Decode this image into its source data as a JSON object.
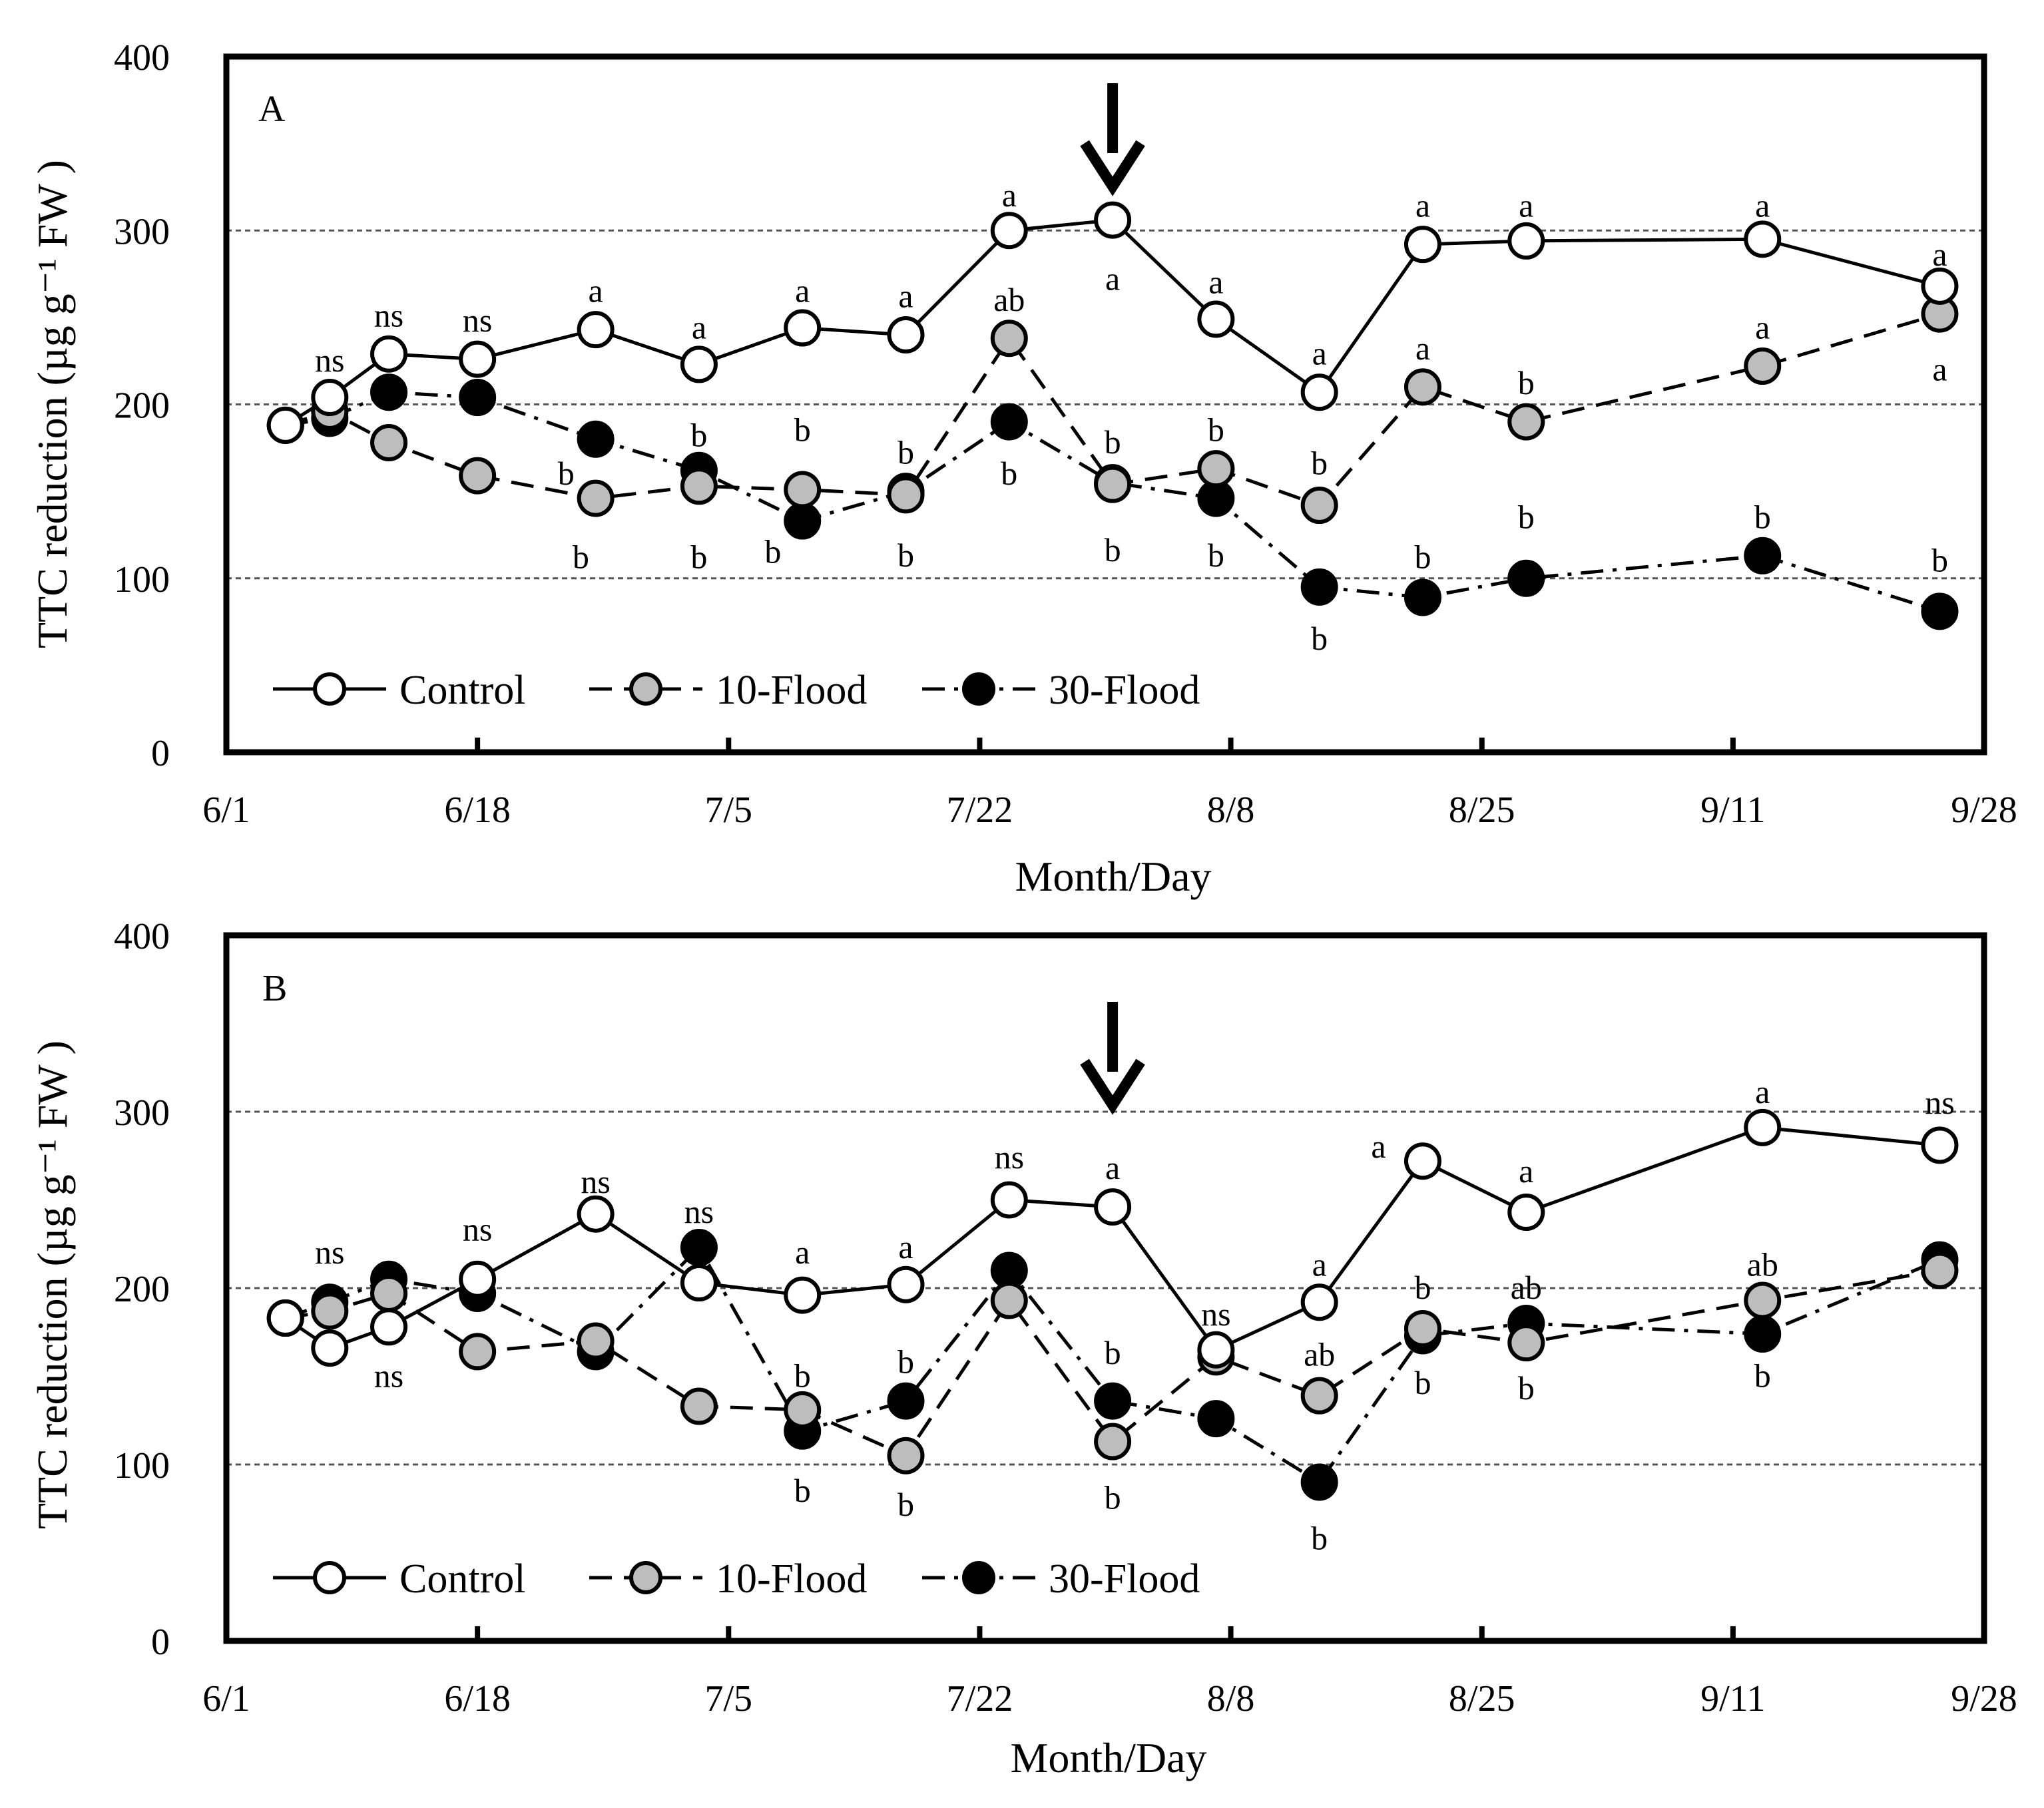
{
  "figure": {
    "ylabel": "TTC reduction  (µg g⁻¹ FW )",
    "xlabel": "Month/Day",
    "x_tick_labels": [
      "6/1",
      "6/18",
      "7/5",
      "7/22",
      "8/8",
      "8/25",
      "9/11",
      "9/28"
    ],
    "y_tick_labels": [
      "0",
      "100",
      "200",
      "300",
      "400"
    ]
  },
  "legend": {
    "control": "Control",
    "flood10": "10-Flood",
    "flood30": "30-Flood"
  },
  "colors": {
    "control_fill": "#ffffff",
    "flood10_fill": "#bdbdbd",
    "flood30_fill": "#000000",
    "line": "#000000",
    "gridline": "#555555"
  },
  "chart_data": [
    {
      "panel": "A",
      "type": "line",
      "xlabel": "Month/Day",
      "ylabel": "TTC reduction  (µg g⁻¹ FW )",
      "xlim_day": [
        0,
        119
      ],
      "x_ticks_day": [
        0,
        17,
        34,
        51,
        68,
        85,
        102,
        119
      ],
      "x_tick_labels": [
        "6/1",
        "6/18",
        "7/5",
        "7/22",
        "8/8",
        "8/25",
        "9/11",
        "9/28"
      ],
      "ylim": [
        0,
        400
      ],
      "y_ticks": [
        0,
        100,
        200,
        300,
        400
      ],
      "gridlines_y": [
        100,
        200,
        300
      ],
      "arrow_day": 60,
      "series": [
        {
          "name": "Control",
          "x": [
            4,
            7,
            11,
            17,
            25,
            32,
            39,
            46,
            53,
            60,
            67,
            74,
            81,
            88,
            104,
            116
          ],
          "y": [
            188,
            204,
            229,
            226,
            243,
            223,
            244,
            240,
            300,
            306,
            249,
            207,
            292,
            294,
            295,
            268
          ]
        },
        {
          "name": "10-Flood",
          "x": [
            4,
            7,
            11,
            17,
            25,
            32,
            39,
            46,
            53,
            60,
            67,
            74,
            81,
            88,
            104,
            116
          ],
          "y": [
            188,
            196,
            178,
            159,
            146,
            153,
            151,
            148,
            238,
            154,
            163,
            142,
            210,
            190,
            222,
            252
          ]
        },
        {
          "name": "30-Flood",
          "x": [
            4,
            7,
            11,
            17,
            25,
            32,
            39,
            46,
            53,
            60,
            67,
            74,
            81,
            88,
            104,
            116
          ],
          "y": [
            188,
            192,
            207,
            204,
            180,
            162,
            133,
            150,
            190,
            155,
            146,
            95,
            89,
            100,
            113,
            81
          ]
        }
      ],
      "annotations": [
        {
          "text": "ns",
          "x": 7,
          "y": 225
        },
        {
          "text": "ns",
          "x": 11,
          "y": 251
        },
        {
          "text": "ns",
          "x": 17,
          "y": 248
        },
        {
          "text": "a",
          "x": 25,
          "y": 265
        },
        {
          "text": "b",
          "x": 23,
          "y": 160
        },
        {
          "text": "b",
          "x": 24,
          "y": 112
        },
        {
          "text": "a",
          "x": 32,
          "y": 244
        },
        {
          "text": "b",
          "x": 32,
          "y": 182
        },
        {
          "text": "b",
          "x": 32,
          "y": 112
        },
        {
          "text": "a",
          "x": 39,
          "y": 265
        },
        {
          "text": "b",
          "x": 39,
          "y": 185
        },
        {
          "text": "b",
          "x": 37,
          "y": 115
        },
        {
          "text": "a",
          "x": 46,
          "y": 262
        },
        {
          "text": "b",
          "x": 46,
          "y": 172
        },
        {
          "text": "b",
          "x": 46,
          "y": 113
        },
        {
          "text": "a",
          "x": 53,
          "y": 320
        },
        {
          "text": "ab",
          "x": 53,
          "y": 260
        },
        {
          "text": "b",
          "x": 53,
          "y": 160
        },
        {
          "text": "a",
          "x": 60,
          "y": 272
        },
        {
          "text": "b",
          "x": 60,
          "y": 178
        },
        {
          "text": "b",
          "x": 60,
          "y": 116
        },
        {
          "text": "a",
          "x": 67,
          "y": 270
        },
        {
          "text": "b",
          "x": 67,
          "y": 185
        },
        {
          "text": "b",
          "x": 67,
          "y": 113
        },
        {
          "text": "a",
          "x": 74,
          "y": 229
        },
        {
          "text": "b",
          "x": 74,
          "y": 166
        },
        {
          "text": "b",
          "x": 74,
          "y": 65
        },
        {
          "text": "a",
          "x": 81,
          "y": 314
        },
        {
          "text": "a",
          "x": 81,
          "y": 232
        },
        {
          "text": "b",
          "x": 81,
          "y": 112
        },
        {
          "text": "a",
          "x": 88,
          "y": 314
        },
        {
          "text": "b",
          "x": 88,
          "y": 212
        },
        {
          "text": "b",
          "x": 88,
          "y": 135
        },
        {
          "text": "a",
          "x": 104,
          "y": 314
        },
        {
          "text": "a",
          "x": 104,
          "y": 244
        },
        {
          "text": "b",
          "x": 104,
          "y": 135
        },
        {
          "text": "a",
          "x": 116,
          "y": 286
        },
        {
          "text": "a",
          "x": 116,
          "y": 220
        },
        {
          "text": "b",
          "x": 116,
          "y": 110
        }
      ]
    },
    {
      "panel": "B",
      "type": "line",
      "xlabel": "Month/Day",
      "ylabel": "TTC reduction  (µg g⁻¹ FW )",
      "xlim_day": [
        0,
        119
      ],
      "x_ticks_day": [
        0,
        17,
        34,
        51,
        68,
        85,
        102,
        119
      ],
      "x_tick_labels": [
        "6/1",
        "6/18",
        "7/5",
        "7/22",
        "8/8",
        "8/25",
        "9/11",
        "9/28"
      ],
      "ylim": [
        0,
        400
      ],
      "y_ticks": [
        0,
        100,
        200,
        300,
        400
      ],
      "gridlines_y": [
        100,
        200,
        300
      ],
      "arrow_day": 60,
      "series": [
        {
          "name": "Control",
          "x": [
            4,
            7,
            11,
            17,
            25,
            32,
            39,
            46,
            53,
            60,
            67,
            74,
            81,
            88,
            104,
            116
          ],
          "y": [
            183,
            166,
            178,
            205,
            242,
            203,
            196,
            202,
            250,
            246,
            165,
            192,
            272,
            243,
            291,
            281
          ]
        },
        {
          "name": "10-Flood",
          "x": [
            4,
            7,
            11,
            17,
            25,
            32,
            39,
            46,
            53,
            60,
            67,
            74,
            81,
            88,
            104,
            116
          ],
          "y": [
            183,
            187,
            197,
            164,
            170,
            133,
            131,
            105,
            193,
            113,
            161,
            139,
            177,
            169,
            193,
            210
          ]
        },
        {
          "name": "30-Flood",
          "x": [
            4,
            7,
            11,
            17,
            25,
            32,
            39,
            46,
            53,
            60,
            67,
            74,
            81,
            88,
            104,
            116
          ],
          "y": [
            183,
            192,
            205,
            197,
            164,
            223,
            119,
            136,
            210,
            136,
            126,
            90,
            173,
            180,
            174,
            216
          ]
        }
      ],
      "annotations": [
        {
          "text": "ns",
          "x": 7,
          "y": 220
        },
        {
          "text": "ns",
          "x": 11,
          "y": 150
        },
        {
          "text": "ns",
          "x": 17,
          "y": 233
        },
        {
          "text": "ns",
          "x": 25,
          "y": 260
        },
        {
          "text": "ns",
          "x": 32,
          "y": 243
        },
        {
          "text": "a",
          "x": 39,
          "y": 220
        },
        {
          "text": "b",
          "x": 39,
          "y": 150
        },
        {
          "text": "b",
          "x": 39,
          "y": 85
        },
        {
          "text": "a",
          "x": 46,
          "y": 223
        },
        {
          "text": "b",
          "x": 46,
          "y": 158
        },
        {
          "text": "b",
          "x": 46,
          "y": 77
        },
        {
          "text": "ns",
          "x": 53,
          "y": 274
        },
        {
          "text": "a",
          "x": 60,
          "y": 268
        },
        {
          "text": "b",
          "x": 60,
          "y": 163
        },
        {
          "text": "b",
          "x": 60,
          "y": 81
        },
        {
          "text": "ns",
          "x": 67,
          "y": 185
        },
        {
          "text": "a",
          "x": 74,
          "y": 213
        },
        {
          "text": "ab",
          "x": 74,
          "y": 162
        },
        {
          "text": "b",
          "x": 74,
          "y": 58
        },
        {
          "text": "a",
          "x": 78,
          "y": 280
        },
        {
          "text": "b",
          "x": 81,
          "y": 200
        },
        {
          "text": "b",
          "x": 81,
          "y": 146
        },
        {
          "text": "a",
          "x": 88,
          "y": 266
        },
        {
          "text": "ab",
          "x": 88,
          "y": 200
        },
        {
          "text": "b",
          "x": 88,
          "y": 143
        },
        {
          "text": "a",
          "x": 104,
          "y": 311
        },
        {
          "text": "ab",
          "x": 104,
          "y": 213
        },
        {
          "text": "b",
          "x": 104,
          "y": 150
        },
        {
          "text": "ns",
          "x": 116,
          "y": 305
        }
      ]
    }
  ]
}
